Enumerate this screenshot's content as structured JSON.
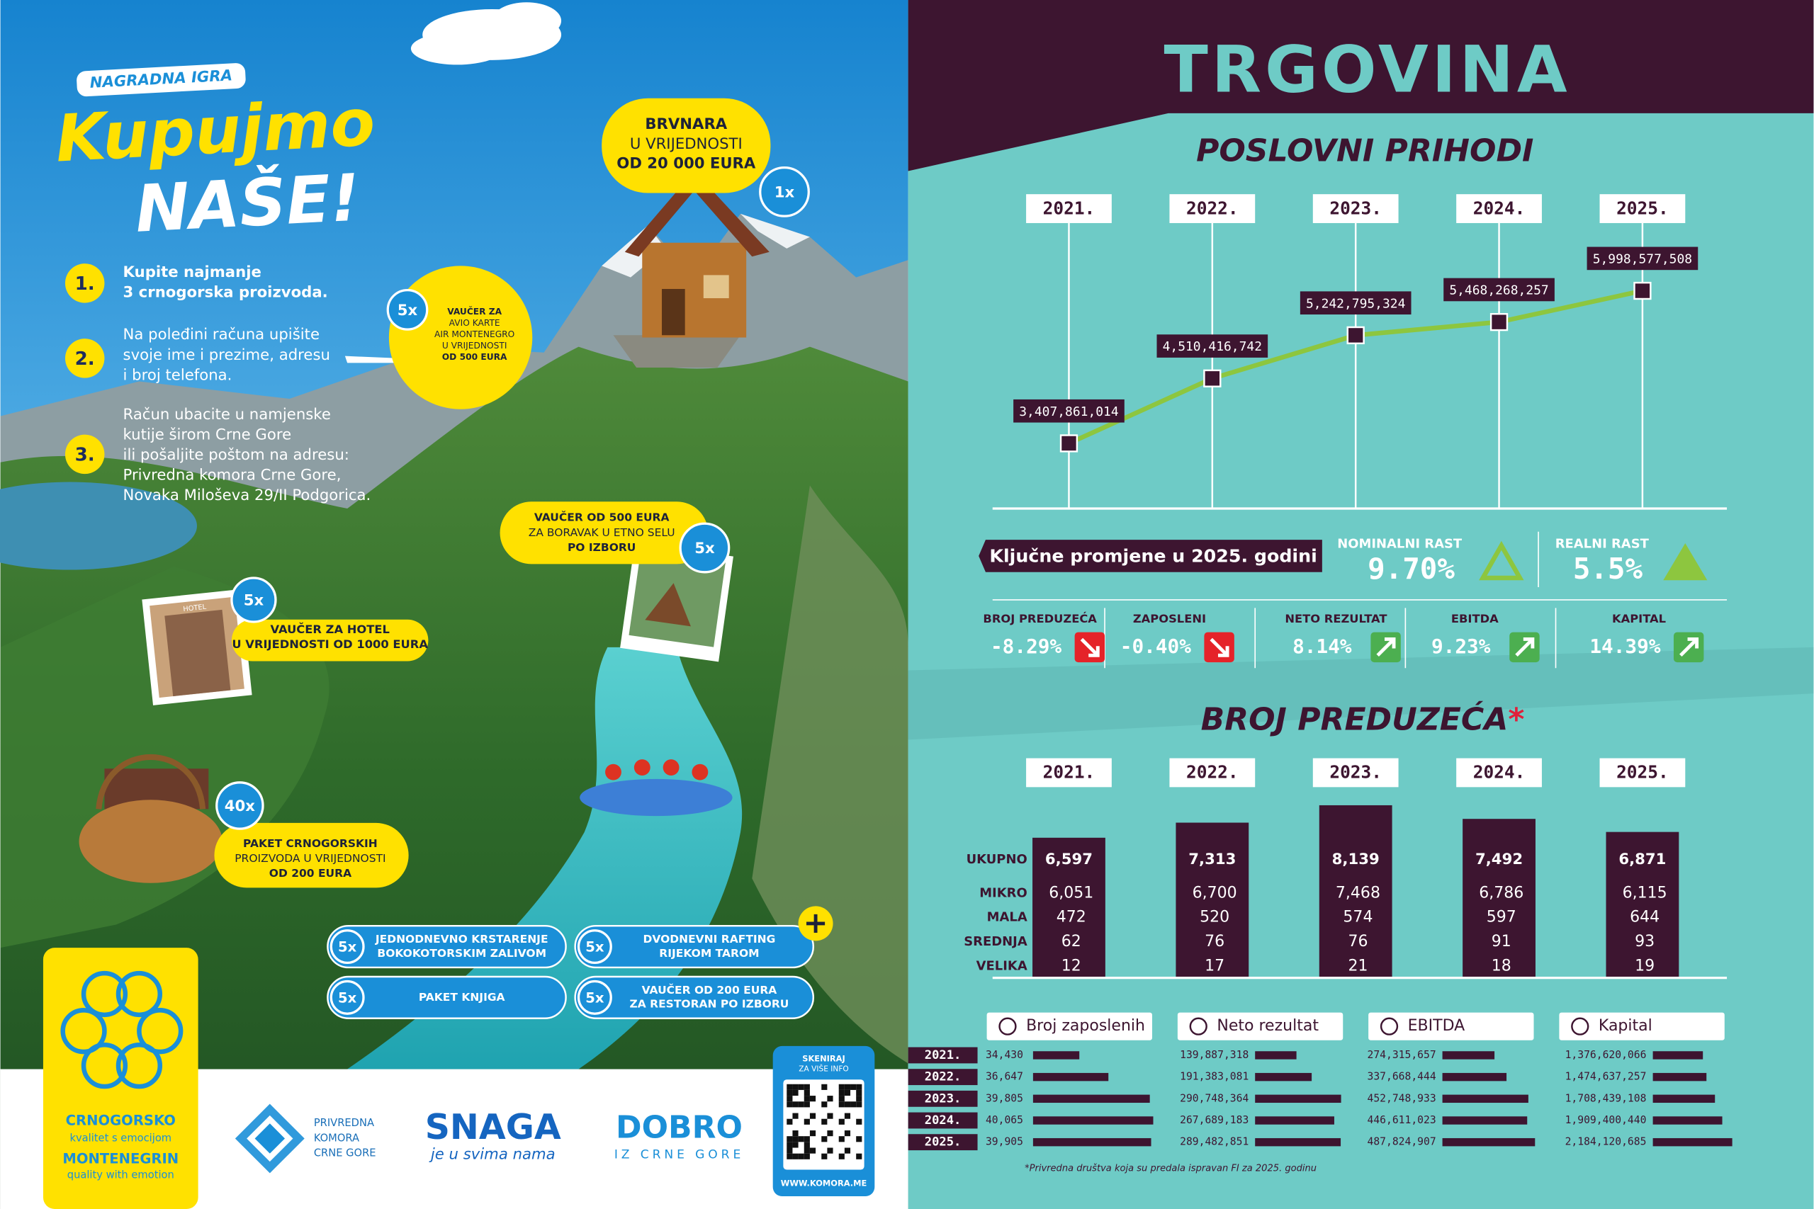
{
  "ad": {
    "badge": "NAGRADNA IGRA",
    "title_1": "Kupujmo",
    "title_2": "NAŠE!",
    "steps": [
      {
        "number": "1.",
        "lines": [
          "Kupite najmanje",
          "3 crnogorska proizvoda."
        ]
      },
      {
        "number": "2.",
        "lines": [
          "Na poleđini računa upišite",
          "svoje ime i prezime, adresu",
          "i broj telefona."
        ]
      },
      {
        "number": "3.",
        "lines": [
          "Račun ubacite u namjenske",
          "kutije širom Crne Gore",
          "ili pošaljite poštom na adresu:",
          "Privredna komora Crne Gore,",
          "Novaka Miloševa 29/II Podgorica."
        ]
      }
    ],
    "prizes": [
      {
        "count": "1x",
        "lines": [
          "BRVNARA",
          "U VRIJEDNOSTI",
          "OD 20 000 EURA"
        ]
      },
      {
        "count": "5x",
        "lines": [
          "VAUČER ZA",
          "AVIO KARTE",
          "AIR MONTENEGRO",
          "U VRIJEDNOSTI",
          "OD 500 EURA"
        ]
      },
      {
        "count": "5x",
        "lines": [
          "VAUČER OD 500 EURA",
          "ZA BORAVAK U ETNO SELU",
          "PO IZBORU"
        ]
      },
      {
        "count": "5x",
        "lines": [
          "VAUČER ZA HOTEL",
          "U VRIJEDNOSTI  OD 1000 EURA"
        ]
      },
      {
        "count": "40x",
        "lines": [
          "PAKET CRNOGORSKIH",
          "PROIZVODA U VRIJEDNOSTI",
          "OD 200 EURA"
        ]
      }
    ],
    "pills": [
      {
        "count": "5x",
        "lines": [
          "JEDNODNEVNO KRSTARENJE",
          "BOKOKOTORSKIM ZALIVOM"
        ]
      },
      {
        "count": "5x",
        "lines": [
          "DVODNEVNI RAFTING",
          "RIJEKOM TAROM"
        ]
      },
      {
        "count": "5x",
        "lines": [
          "PAKET KNJIGA"
        ]
      },
      {
        "count": "5x",
        "lines": [
          "VAUČER OD 200 EURA",
          "ZA RESTORAN PO IZBORU"
        ]
      }
    ],
    "hotel_sign": "HOTEL",
    "footer": {
      "brand": [
        "CRNOGORSKO",
        "kvalitet s emocijom",
        "MONTENEGRIN",
        "quality with emotion"
      ],
      "chamber": [
        "PRIVREDNA",
        "KOMORA",
        "CRNE GORE"
      ],
      "snaga": [
        "SNAGA",
        "je u svima nama"
      ],
      "dobro": [
        "DOBRO",
        "IZ CRNE GORE"
      ],
      "qr_top": [
        "SKENIRAJ",
        "ZA VIŠE INFO"
      ],
      "qr_url": "WWW.KOMORA.ME"
    }
  },
  "infographic": {
    "title": "TRGOVINA",
    "key_changes": {
      "heading": "Ključne promjene u 2025. godini",
      "headline": [
        {
          "label": "NOMINALNI RAST",
          "value": "9.70%"
        },
        {
          "label": "REALNI RAST",
          "value": "5.5%"
        }
      ],
      "indicators": [
        {
          "label": "BROJ PREDUZEĆA",
          "value": "-8.29%",
          "trend": "down"
        },
        {
          "label": "ZAPOSLENI",
          "value": "-0.40%",
          "trend": "down"
        },
        {
          "label": "NETO REZULTAT",
          "value": "8.14%",
          "trend": "up"
        },
        {
          "label": "EBITDA",
          "value": "9.23%",
          "trend": "up"
        },
        {
          "label": "KAPITAL",
          "value": "14.39%",
          "trend": "up"
        }
      ]
    },
    "footnote": "*Privredna društva koja su predala ispravan FI za 2025. godinu"
  },
  "chart_data": [
    {
      "type": "line",
      "title": "POSLOVNI PRIHODI",
      "categories": [
        "2021.",
        "2022.",
        "2023.",
        "2024.",
        "2025."
      ],
      "values": [
        3407861014,
        4510416742,
        5242795324,
        5468268257,
        5998577508
      ],
      "value_labels": [
        "3,407,861,014",
        "4,510,416,742",
        "5,242,795,324",
        "5,468,268,257",
        "5,998,577,508"
      ],
      "ylim": [
        2300000000,
        7600000000
      ],
      "color": "#8dc63f"
    },
    {
      "type": "bar",
      "title": "BROJ PREDUZEĆA",
      "title_mark": "*",
      "categories": [
        "2021.",
        "2022.",
        "2023.",
        "2024.",
        "2025."
      ],
      "series": [
        {
          "name": "UKUPNO",
          "color": "#3d1530",
          "values": [
            6597,
            7313,
            8139,
            7492,
            6871
          ],
          "value_labels": [
            "6,597",
            "7,313",
            "8,139",
            "7,492",
            "6,871"
          ]
        }
      ],
      "ylim": [
        0,
        9000
      ],
      "table": [
        {
          "name": "MIKRO",
          "values": [
            6051,
            6700,
            7468,
            6786,
            6115
          ],
          "value_labels": [
            "6,051",
            "6,700",
            "7,468",
            "6,786",
            "6,115"
          ]
        },
        {
          "name": "MALA",
          "values": [
            472,
            520,
            574,
            597,
            644
          ]
        },
        {
          "name": "SREDNJA",
          "values": [
            62,
            76,
            76,
            91,
            93
          ]
        },
        {
          "name": "VELIKA",
          "values": [
            12,
            17,
            21,
            18,
            19
          ]
        }
      ]
    },
    {
      "type": "bar",
      "orientation": "horizontal",
      "categories": [
        "2021.",
        "2022.",
        "2023.",
        "2024.",
        "2025."
      ],
      "series": [
        {
          "name": "Broj zaposlenih",
          "color": "#3d1530",
          "values": [
            34430,
            36647,
            39805,
            40065,
            39905
          ],
          "value_labels": [
            "34,430",
            "36,647",
            "39,805",
            "40,065",
            "39,905"
          ],
          "xlim": [
            30900,
            40600
          ]
        },
        {
          "name": "Neto rezultat",
          "color": "#3d1530",
          "values": [
            139887318,
            191383081,
            290748364,
            267689183,
            289482851
          ],
          "value_labels": [
            "139,887,318",
            "191,383,081",
            "290,748,364",
            "267,689,183",
            "289,482,851"
          ],
          "xlim": [
            0,
            430000000
          ]
        },
        {
          "name": "EBITDA",
          "color": "#3d1530",
          "values": [
            274315657,
            337668444,
            452748933,
            446611023,
            487824907
          ],
          "value_labels": [
            "274,315,657",
            "337,668,444",
            "452,748,933",
            "446,611,023",
            "487,824,907"
          ],
          "xlim": [
            0,
            670000000
          ]
        },
        {
          "name": "Kapital",
          "color": "#3d1530",
          "values": [
            1376620066,
            1474637257,
            1708439108,
            1909400440,
            2184120685
          ],
          "value_labels": [
            "1,376,620,066",
            "1,474,637,257",
            "1,708,439,108",
            "1,909,400,440",
            "2,184,120,685"
          ],
          "xlim": [
            0,
            3500000000
          ]
        }
      ]
    }
  ]
}
